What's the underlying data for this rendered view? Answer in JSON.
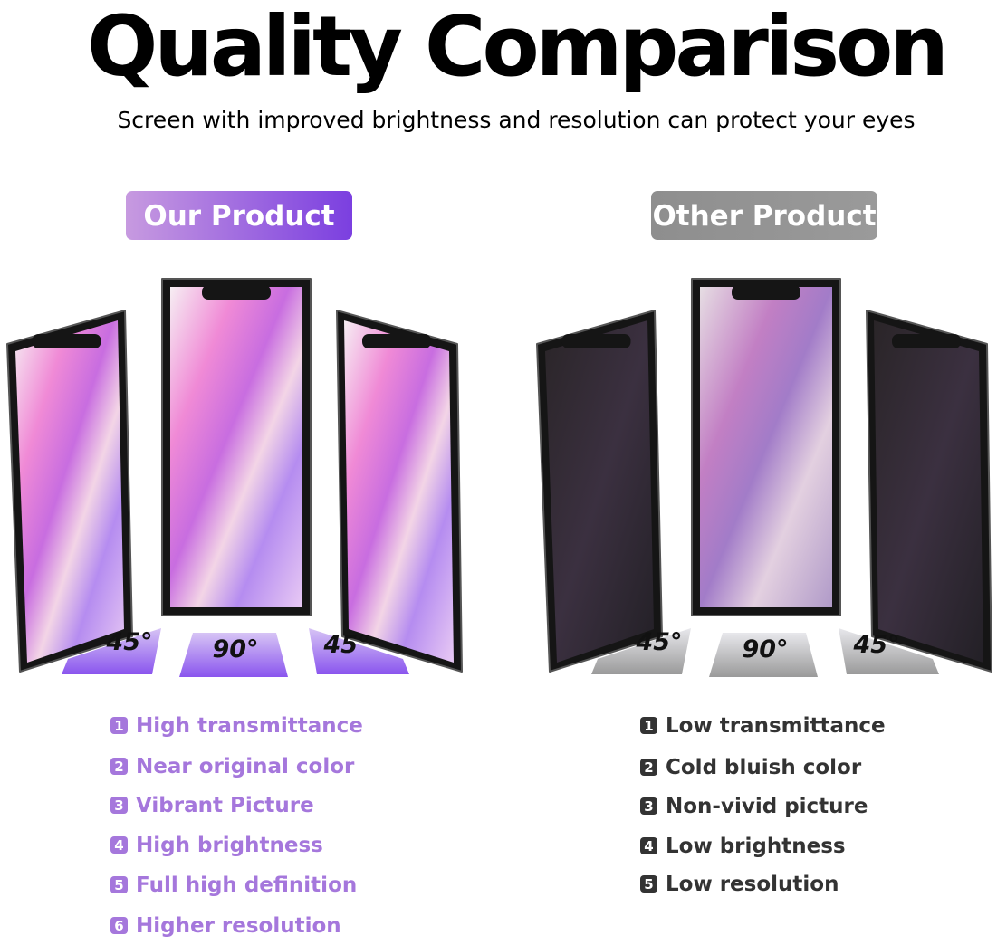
{
  "header": {
    "title": "Quality Comparison",
    "subtitle": "Screen with improved brightness and resolution can protect your eyes"
  },
  "columns": [
    {
      "label": "Our Product",
      "angles": [
        "45°",
        "90°",
        "45°"
      ],
      "features": [
        {
          "number": 1,
          "text": "High transmittance"
        },
        {
          "number": 2,
          "text": "Near original color"
        },
        {
          "number": 3,
          "text": "Vibrant Picture"
        },
        {
          "number": 4,
          "text": "High brightness"
        },
        {
          "number": 5,
          "text": "Full high definition"
        },
        {
          "number": 6,
          "text": "Higher resolution"
        }
      ]
    },
    {
      "label": "Other Product",
      "angles": [
        "45°",
        "90°",
        "45°"
      ],
      "features": [
        {
          "number": 1,
          "text": "Low transmittance"
        },
        {
          "number": 2,
          "text": "Cold bluish color"
        },
        {
          "number": 3,
          "text": "Non-vivid picture"
        },
        {
          "number": 4,
          "text": "Low brightness"
        },
        {
          "number": 5,
          "text": "Low resolution"
        }
      ]
    }
  ]
}
